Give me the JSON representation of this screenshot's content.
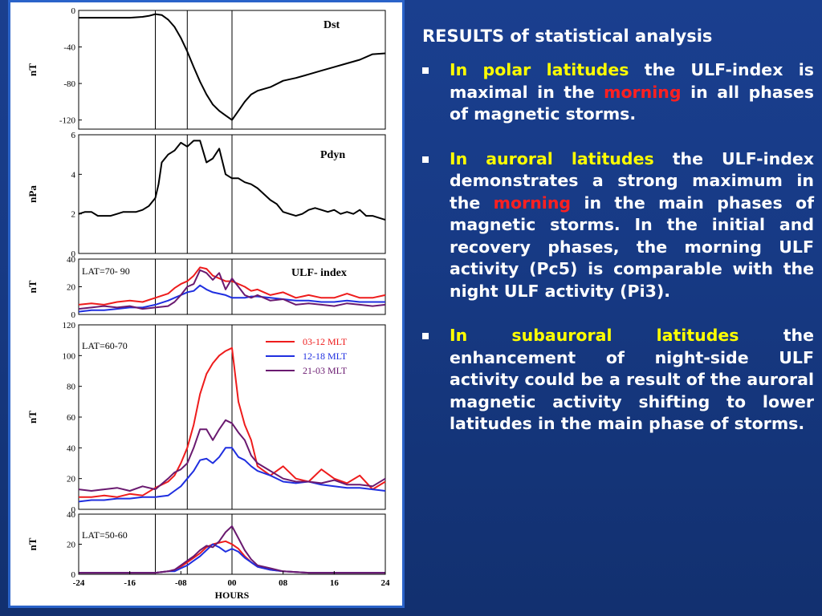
{
  "chart_data": [
    {
      "type": "line",
      "title": "Dst",
      "ylabel": "nT",
      "ylim": [
        -130,
        0
      ],
      "yticks": [
        "0",
        "-40",
        "-80",
        "-120"
      ],
      "x": [
        -24,
        -22,
        -20,
        -18,
        -16,
        -14,
        -13,
        -12,
        -11,
        -10,
        -9,
        -8,
        -7,
        -6,
        -5,
        -4,
        -3,
        -2,
        -1,
        0,
        1,
        2,
        3,
        4,
        6,
        8,
        10,
        12,
        14,
        16,
        18,
        20,
        22,
        24
      ],
      "series": [
        {
          "values": [
            -8,
            -8,
            -8,
            -8,
            -8,
            -7,
            -6,
            -4,
            -5,
            -10,
            -18,
            -30,
            -45,
            -62,
            -78,
            -92,
            -103,
            -110,
            -115,
            -120,
            -110,
            -100,
            -92,
            -88,
            -84,
            -77,
            -74,
            -70,
            -66,
            -62,
            -58,
            -54,
            -48,
            -47
          ]
        }
      ]
    },
    {
      "type": "line",
      "title": "Pdyn",
      "ylabel": "nPa",
      "ylim": [
        0,
        6
      ],
      "yticks": [
        "0",
        "2",
        "4",
        "6"
      ],
      "x": [
        -24,
        -23,
        -22,
        -21,
        -20,
        -19,
        -18,
        -17,
        -16,
        -15,
        -14,
        -13,
        -12,
        -11.5,
        -11,
        -10,
        -9,
        -8,
        -7,
        -6,
        -5,
        -4,
        -3,
        -2,
        -1,
        0,
        1,
        2,
        3,
        4,
        5,
        6,
        7,
        8,
        9,
        10,
        11,
        12,
        13,
        14,
        15,
        16,
        17,
        18,
        19,
        20,
        21,
        22,
        23,
        24
      ],
      "series": [
        {
          "values": [
            2.0,
            2.1,
            2.1,
            1.9,
            1.9,
            1.9,
            2.0,
            2.1,
            2.1,
            2.1,
            2.2,
            2.4,
            2.8,
            3.5,
            4.6,
            5.0,
            5.2,
            5.6,
            5.4,
            5.7,
            5.7,
            4.6,
            4.8,
            5.3,
            4.0,
            3.8,
            3.8,
            3.6,
            3.5,
            3.3,
            3.0,
            2.7,
            2.5,
            2.1,
            2.0,
            1.9,
            2.0,
            2.2,
            2.3,
            2.2,
            2.1,
            2.2,
            2.0,
            2.1,
            2.0,
            2.2,
            1.9,
            1.9,
            1.8,
            1.7
          ]
        }
      ]
    },
    {
      "type": "line",
      "title": "ULF- index",
      "annotation": "LAT=70- 90",
      "ylabel": "nT",
      "ylim": [
        0,
        40
      ],
      "yticks": [
        "0",
        "20",
        "40"
      ],
      "x": [
        -24,
        -22,
        -20,
        -18,
        -16,
        -14,
        -12,
        -10,
        -9,
        -8,
        -7,
        -6,
        -5,
        -4,
        -3,
        -2,
        -1,
        0,
        1,
        2,
        3,
        4,
        6,
        8,
        10,
        12,
        14,
        16,
        18,
        20,
        22,
        24
      ],
      "series": [
        {
          "name": "03-12 MLT",
          "color": "#ee1c1c",
          "values": [
            7,
            8,
            7,
            9,
            10,
            9,
            12,
            15,
            19,
            22,
            24,
            28,
            34,
            33,
            28,
            26,
            24,
            24,
            22,
            20,
            17,
            18,
            14,
            16,
            12,
            14,
            12,
            12,
            15,
            12,
            12,
            14
          ]
        },
        {
          "name": "12-18 MLT",
          "color": "#1f2fe0",
          "values": [
            2,
            3,
            3,
            4,
            5,
            5,
            7,
            10,
            12,
            14,
            16,
            17,
            21,
            18,
            16,
            15,
            14,
            12,
            12,
            12,
            13,
            13,
            12,
            11,
            10,
            10,
            9,
            9,
            10,
            9,
            9,
            9
          ]
        },
        {
          "name": "21-03 MLT",
          "color": "#6a1a70",
          "values": [
            4,
            5,
            6,
            5,
            6,
            4,
            5,
            6,
            9,
            14,
            20,
            22,
            32,
            30,
            25,
            30,
            18,
            26,
            20,
            14,
            12,
            14,
            10,
            11,
            7,
            8,
            7,
            6,
            8,
            7,
            6,
            7
          ]
        }
      ]
    },
    {
      "type": "line",
      "annotation": "LAT=60-70",
      "ylabel": "nT",
      "ylim": [
        0,
        120
      ],
      "yticks": [
        "0",
        "20",
        "40",
        "60",
        "80",
        "100",
        "120"
      ],
      "legend": [
        "03-12 MLT",
        "12-18 MLT",
        "21-03 MLT"
      ],
      "legend_position": "top-right",
      "x": [
        -24,
        -22,
        -20,
        -18,
        -16,
        -14,
        -12,
        -10,
        -9,
        -8,
        -7,
        -6,
        -5,
        -4,
        -3,
        -2,
        -1,
        0,
        1,
        2,
        3,
        4,
        6,
        8,
        10,
        12,
        14,
        16,
        18,
        20,
        22,
        24
      ],
      "series": [
        {
          "name": "03-12 MLT",
          "color": "#ee1c1c",
          "values": [
            8,
            8,
            9,
            8,
            10,
            9,
            14,
            18,
            22,
            30,
            40,
            55,
            75,
            88,
            95,
            100,
            103,
            105,
            70,
            55,
            45,
            28,
            22,
            28,
            20,
            18,
            26,
            20,
            17,
            22,
            13,
            18
          ]
        },
        {
          "name": "12-18 MLT",
          "color": "#1f2fe0",
          "values": [
            5,
            6,
            6,
            7,
            7,
            8,
            8,
            9,
            12,
            15,
            20,
            25,
            32,
            33,
            30,
            34,
            40,
            40,
            34,
            32,
            28,
            25,
            22,
            18,
            17,
            18,
            16,
            15,
            14,
            14,
            13,
            12
          ]
        },
        {
          "name": "21-03 MLT",
          "color": "#6a1a70",
          "values": [
            13,
            12,
            13,
            14,
            12,
            15,
            13,
            20,
            24,
            26,
            30,
            40,
            52,
            52,
            45,
            52,
            58,
            56,
            50,
            45,
            35,
            30,
            25,
            20,
            18,
            18,
            17,
            19,
            16,
            16,
            15,
            20
          ]
        }
      ]
    },
    {
      "type": "line",
      "annotation": "LAT=50-60",
      "ylabel": "nT",
      "ylim": [
        0,
        40
      ],
      "yticks": [
        "0",
        "20",
        "40"
      ],
      "xlabel": "HOURS",
      "xticks": [
        "-24",
        "-16",
        "-08",
        "00",
        "08",
        "16",
        "24"
      ],
      "x": [
        -24,
        -20,
        -16,
        -14,
        -12,
        -10,
        -9,
        -8,
        -7,
        -6,
        -5,
        -4,
        -3,
        -2,
        -1,
        0,
        1,
        2,
        3,
        4,
        6,
        8,
        12,
        16,
        20,
        24
      ],
      "series": [
        {
          "name": "03-12 MLT",
          "color": "#ee1c1c",
          "values": [
            1,
            1,
            1,
            1,
            1,
            2,
            3,
            5,
            8,
            11,
            14,
            18,
            20,
            21,
            22,
            20,
            17,
            12,
            8,
            5,
            3,
            2,
            1,
            1,
            1,
            1
          ]
        },
        {
          "name": "12-18 MLT",
          "color": "#1f2fe0",
          "values": [
            1,
            1,
            1,
            1,
            1,
            2,
            2,
            4,
            6,
            9,
            12,
            16,
            20,
            18,
            15,
            17,
            15,
            11,
            8,
            5,
            3,
            2,
            1,
            1,
            1,
            1
          ]
        },
        {
          "name": "21-03 MLT",
          "color": "#6a1a70",
          "values": [
            1,
            1,
            1,
            1,
            1,
            2,
            3,
            6,
            9,
            12,
            16,
            19,
            18,
            22,
            28,
            32,
            24,
            16,
            10,
            6,
            4,
            2,
            1,
            1,
            1,
            1
          ]
        }
      ],
      "vertical_lines_x": [
        -12,
        -7,
        0
      ]
    }
  ],
  "text": {
    "heading": "RESULTS of statistical analysis",
    "bullets": [
      {
        "hl1": "In polar latitudes",
        "t1": " the ULF-index is maximal in the ",
        "hl2": "morning",
        "t2": " in all phases of magnetic storms."
      },
      {
        "hl1": "In auroral latitudes",
        "t1": " the ULF-index demonstrates a strong maximum in the ",
        "hl2": "morning",
        "t2": " in the main phases of magnetic storms. In the initial and recovery phases, the morning ULF activity (Pc5) is comparable with the night ULF activity (Pi3)."
      },
      {
        "hl1": "In subauroral latitudes",
        "t1": " the enhancement of night-side ULF activity could be a result of the auroral magnetic activity shifting to lower latitudes in the main phase of storms.",
        "hl2": "",
        "t2": ""
      }
    ]
  },
  "colors": {
    "background": "#1a3f8f",
    "frame": "#2a63c9",
    "highlight_yellow": "#ffff00",
    "highlight_red": "#ff2020"
  }
}
